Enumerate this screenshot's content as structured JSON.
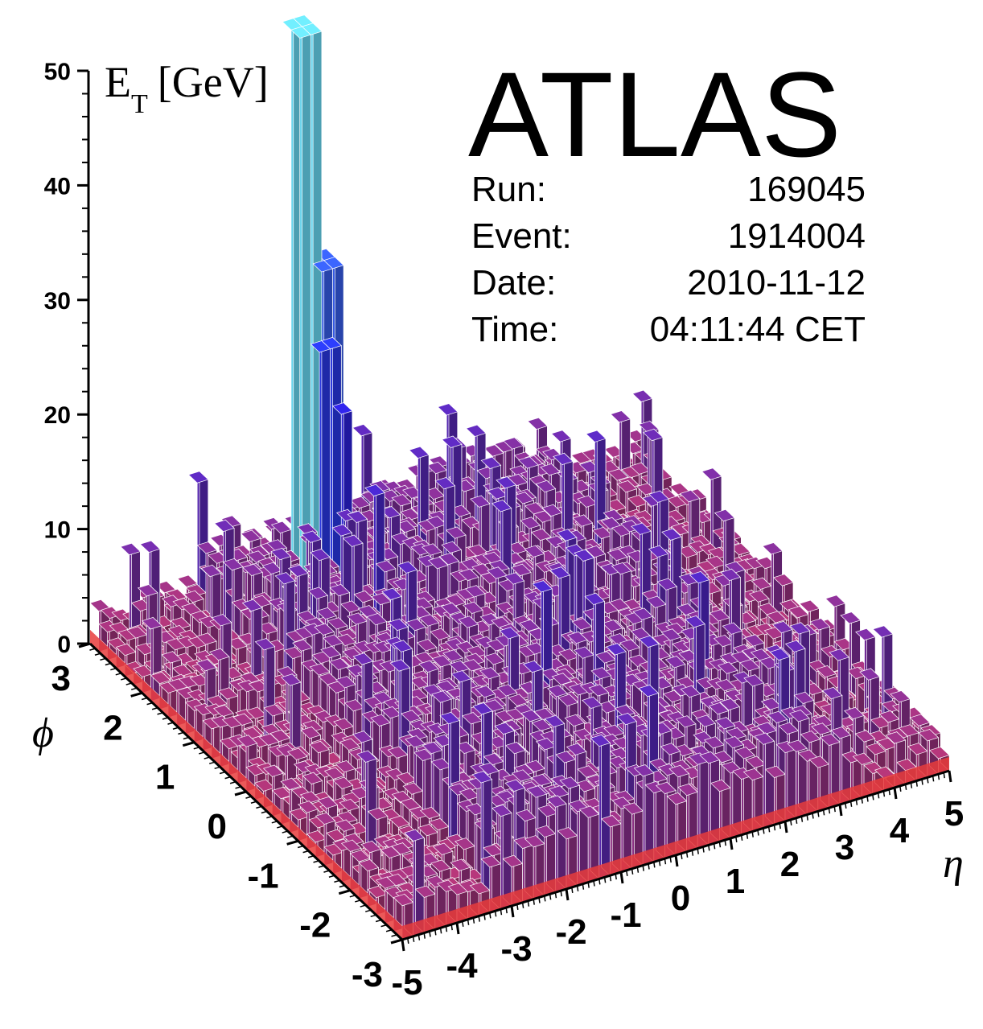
{
  "chart_data": {
    "type": "lego-histogram",
    "zlabel_main": "E",
    "zlabel_sub": "T",
    "zlabel_unit": "[GeV]",
    "xlabel": "η",
    "ylabel": "ϕ",
    "zlim": [
      0,
      50
    ],
    "xlim": [
      -5,
      5
    ],
    "ylim": [
      -3,
      3
    ],
    "z_ticks": [
      "0",
      "10",
      "20",
      "30",
      "40",
      "50"
    ],
    "eta_ticks": [
      "-5",
      "-4",
      "-3",
      "-2",
      "-1",
      "0",
      "1",
      "2",
      "3",
      "4",
      "5"
    ],
    "phi_ticks": [
      "-3",
      "-2",
      "-1",
      "0",
      "1",
      "2",
      "3"
    ],
    "colors": {
      "low": "#e83c3c",
      "mid": "#2020e8",
      "high": "#6ee8f8"
    },
    "peaks": [
      {
        "eta": -1.6,
        "phi": 2.5,
        "et": 51
      },
      {
        "eta": -1.4,
        "phi": 2.5,
        "et": 30
      },
      {
        "eta": -1.2,
        "phi": 2.5,
        "et": 30
      },
      {
        "eta": -1.4,
        "phi": 2.3,
        "et": 24
      },
      {
        "eta": -1.2,
        "phi": 2.3,
        "et": 18
      },
      {
        "eta": 0.3,
        "phi": 0.4,
        "et": 9
      },
      {
        "eta": 0.5,
        "phi": 0.1,
        "et": 8
      },
      {
        "eta": 0.9,
        "phi": -0.3,
        "et": 7
      },
      {
        "eta": -1.3,
        "phi": 1.8,
        "et": 11
      },
      {
        "eta": -3.1,
        "phi": 2.4,
        "et": 10
      }
    ]
  },
  "event_info": {
    "experiment": "ATLAS",
    "rows": [
      {
        "label": "Run:",
        "value": "169045"
      },
      {
        "label": "Event:",
        "value": "1914004"
      },
      {
        "label": "Date:",
        "value": "2010-11-12"
      },
      {
        "label": "Time:",
        "value": "04:11:44 CET"
      }
    ]
  }
}
